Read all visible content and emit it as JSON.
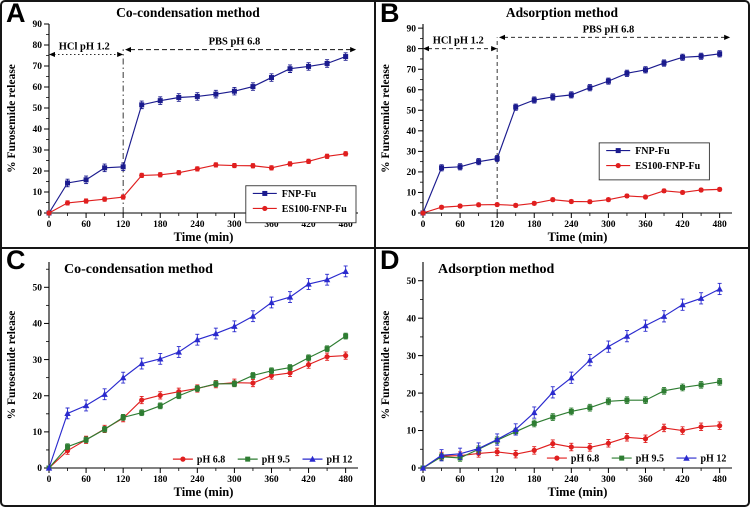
{
  "figure": {
    "description": "Furosemide release profiles",
    "background": "#ffffff",
    "border_color": "#161616"
  },
  "colors": {
    "navy": "#1b1b8e",
    "red": "#e01f1f",
    "green": "#2e7d32",
    "blue": "#2a2ace",
    "axis": "#000000"
  },
  "chart_data": [
    {
      "id": "A",
      "label": "A",
      "title": "Co-condensation method",
      "type": "line",
      "xlabel": "Time (min)",
      "ylabel": "% Furosemide release",
      "xlim": [
        0,
        500
      ],
      "ylim": [
        0,
        90
      ],
      "xticks": [
        0,
        60,
        120,
        180,
        240,
        300,
        360,
        420,
        480
      ],
      "yticks": [
        0,
        10,
        20,
        30,
        40,
        50,
        60,
        70,
        80,
        90
      ],
      "x": [
        0,
        30,
        60,
        90,
        120,
        150,
        180,
        210,
        240,
        270,
        300,
        330,
        360,
        390,
        420,
        450,
        480
      ],
      "series": [
        {
          "name": "FNP-Fu",
          "color_key": "navy",
          "marker": "square",
          "err": 1.8,
          "values": [
            0,
            14.3,
            15.8,
            21.5,
            22.0,
            51.5,
            53.5,
            55.0,
            55.5,
            56.6,
            58.0,
            60.2,
            64.5,
            68.7,
            69.8,
            71.2,
            74.5
          ]
        },
        {
          "name": "ES100-FNP-Fu",
          "color_key": "red",
          "marker": "circle",
          "err": 1.0,
          "values": [
            0,
            4.8,
            5.7,
            6.6,
            7.6,
            17.9,
            18.2,
            19.2,
            21.0,
            22.9,
            22.6,
            22.5,
            21.5,
            23.4,
            24.6,
            27.0,
            28.2
          ]
        }
      ],
      "annotations": [
        {
          "type": "vline",
          "x": 120,
          "y1": 78,
          "dash": "6 3 1.5 3"
        },
        {
          "type": "arrow",
          "x1": 0,
          "x2": 120,
          "y": 75.5,
          "dash": "1.5 2.5",
          "label": "HCl pH 1.2",
          "label_x": 57
        },
        {
          "type": "arrow",
          "x1": 123,
          "x2": 497,
          "y": 77.8,
          "dash": "5 3",
          "label": "PBS pH 6.8",
          "label_x": 300
        }
      ],
      "legend": {
        "style": "boxed",
        "orientation": "vertical"
      }
    },
    {
      "id": "B",
      "label": "B",
      "title": "Adsorption method",
      "type": "line",
      "xlabel": "Time (min)",
      "ylabel": "% Furosemide release",
      "xlim": [
        0,
        500
      ],
      "ylim": [
        0,
        92
      ],
      "xticks": [
        0,
        60,
        120,
        180,
        240,
        300,
        360,
        420,
        480
      ],
      "yticks": [
        0,
        10,
        20,
        30,
        40,
        50,
        60,
        70,
        80,
        90
      ],
      "x": [
        0,
        30,
        60,
        90,
        120,
        150,
        180,
        210,
        240,
        270,
        300,
        330,
        360,
        390,
        420,
        450,
        480
      ],
      "series": [
        {
          "name": "FNP-Fu",
          "color_key": "navy",
          "marker": "square",
          "err": 1.5,
          "values": [
            0,
            22.0,
            22.5,
            25.0,
            26.5,
            51.5,
            55.0,
            56.5,
            57.5,
            61.0,
            64.2,
            68.0,
            69.7,
            73.0,
            75.8,
            76.3,
            77.5
          ]
        },
        {
          "name": "ES100-FNP-Fu",
          "color_key": "red",
          "marker": "circle",
          "err": 0.8,
          "values": [
            0,
            2.8,
            3.4,
            4.0,
            4.1,
            3.7,
            4.7,
            6.5,
            5.6,
            5.5,
            6.5,
            8.3,
            7.8,
            10.8,
            10.0,
            11.2,
            11.5
          ]
        }
      ],
      "annotations": [
        {
          "type": "vline",
          "x": 120,
          "y1": 85.5,
          "dash": "4 3"
        },
        {
          "type": "arrow",
          "x1": 0,
          "x2": 120,
          "y": 80,
          "dash": "4 3",
          "label": "HCl pH 1.2",
          "label_x": 57
        },
        {
          "type": "arrow",
          "x1": 123,
          "x2": 497,
          "y": 85.5,
          "dash": "4 3",
          "label": "PBS pH 6.8",
          "label_x": 300
        }
      ],
      "legend": {
        "style": "boxed",
        "orientation": "vertical"
      }
    },
    {
      "id": "C",
      "label": "C",
      "title": "Co-condensation method",
      "type": "line",
      "xlabel": "Time (min)",
      "ylabel": "% Furosemide release",
      "xlim": [
        0,
        500
      ],
      "ylim": [
        0,
        57
      ],
      "xticks": [
        0,
        60,
        120,
        180,
        240,
        300,
        360,
        420,
        480
      ],
      "yticks": [
        0,
        10,
        20,
        30,
        40,
        50
      ],
      "x": [
        0,
        30,
        60,
        90,
        120,
        150,
        180,
        210,
        240,
        270,
        300,
        330,
        360,
        390,
        420,
        450,
        480
      ],
      "series": [
        {
          "name": "pH 6.8",
          "color_key": "red",
          "marker": "circle",
          "err": 1.0,
          "values": [
            0,
            4.8,
            7.8,
            10.8,
            13.8,
            18.8,
            20.1,
            21.1,
            22.0,
            23.2,
            23.6,
            23.5,
            25.6,
            26.3,
            28.6,
            30.8,
            31.1
          ]
        },
        {
          "name": "pH 9.5",
          "color_key": "green",
          "marker": "square",
          "err": 0.8,
          "values": [
            0,
            5.9,
            7.8,
            10.7,
            14.0,
            15.3,
            17.2,
            20.0,
            22.0,
            23.3,
            23.3,
            25.6,
            26.9,
            27.8,
            30.5,
            33.0,
            36.5
          ]
        },
        {
          "name": "pH 12",
          "color_key": "blue",
          "marker": "triangle",
          "err": 1.5,
          "values": [
            0,
            15.1,
            17.3,
            20.4,
            25.0,
            28.9,
            30.2,
            32.1,
            35.5,
            37.2,
            39.2,
            42.0,
            45.8,
            47.3,
            50.9,
            52.1,
            54.4
          ]
        }
      ],
      "annotations": [],
      "legend": {
        "style": "plain",
        "orientation": "horizontal"
      }
    },
    {
      "id": "D",
      "label": "D",
      "title": "Adsorption method",
      "type": "line",
      "xlabel": "Time (min)",
      "ylabel": "% Furosemide release",
      "xlim": [
        0,
        500
      ],
      "ylim": [
        0,
        55
      ],
      "xticks": [
        0,
        60,
        120,
        180,
        240,
        300,
        360,
        420,
        480
      ],
      "yticks": [
        0,
        10,
        20,
        30,
        40,
        50
      ],
      "x": [
        0,
        30,
        60,
        90,
        120,
        150,
        180,
        210,
        240,
        270,
        300,
        330,
        360,
        390,
        420,
        450,
        480
      ],
      "series": [
        {
          "name": "pH 6.8",
          "color_key": "red",
          "marker": "circle",
          "err": 1.0,
          "values": [
            0,
            3.2,
            3.3,
            3.9,
            4.3,
            3.7,
            4.7,
            6.5,
            5.6,
            5.5,
            6.6,
            8.2,
            7.8,
            10.7,
            10.0,
            11.0,
            11.3
          ]
        },
        {
          "name": "pH 9.5",
          "color_key": "green",
          "marker": "square",
          "err": 0.9,
          "values": [
            0,
            3.0,
            2.7,
            5.0,
            7.4,
            9.7,
            11.9,
            13.6,
            15.1,
            16.1,
            17.8,
            18.1,
            18.1,
            20.6,
            21.5,
            22.2,
            23.0
          ]
        },
        {
          "name": "pH 12",
          "color_key": "blue",
          "marker": "triangle",
          "err": 1.5,
          "values": [
            0,
            3.4,
            3.8,
            5.2,
            7.6,
            10.3,
            14.8,
            20.2,
            24.1,
            28.8,
            32.4,
            35.2,
            38.0,
            40.5,
            43.6,
            45.3,
            47.8
          ]
        }
      ],
      "annotations": [],
      "legend": {
        "style": "plain",
        "orientation": "horizontal"
      }
    }
  ]
}
